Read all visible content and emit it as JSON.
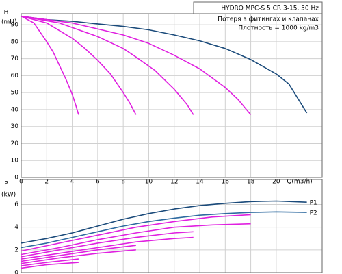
{
  "chart_data": [
    {
      "type": "line",
      "title": "HYDRO MPC-S 5 CR 3-15, 50 Hz",
      "annotations": [
        "Потеря в фитингах и клапанах",
        "Плотность = 1000 kg/m3"
      ],
      "ylabel": "H",
      "yunit": "(mH)",
      "xlabel": "Q(m3/h)",
      "xlim": [
        0,
        23.6
      ],
      "xticks": [
        0,
        2,
        4,
        6,
        8,
        10,
        12,
        14,
        16,
        18,
        20
      ],
      "ylim": [
        0,
        96.5
      ],
      "yticks": [
        0,
        10,
        20,
        30,
        40,
        50,
        60,
        70,
        80,
        90
      ],
      "grid": true,
      "series": [
        {
          "color": "#1a4a7a",
          "x": [
            0,
            2,
            4,
            6,
            8,
            10,
            12,
            14,
            16,
            18,
            20,
            21,
            22.4
          ],
          "values": [
            95,
            93,
            92,
            90.5,
            89,
            87,
            84,
            80.5,
            76,
            69.5,
            61,
            55,
            38
          ]
        },
        {
          "color": "#e020e0",
          "x": [
            0,
            4,
            8,
            10,
            12,
            14,
            16,
            17,
            18
          ],
          "values": [
            95,
            91,
            84,
            79,
            72,
            64,
            53,
            46,
            37
          ]
        },
        {
          "color": "#e020e0",
          "x": [
            0,
            3,
            6,
            8,
            9,
            10.5,
            12,
            13,
            13.5
          ],
          "values": [
            95,
            91,
            83,
            76,
            71,
            63,
            52,
            43,
            37
          ]
        },
        {
          "color": "#e020e0",
          "x": [
            0,
            2,
            4,
            5,
            6,
            7,
            8,
            8.5,
            9
          ],
          "values": [
            95,
            91,
            82,
            76,
            69,
            61,
            50,
            44,
            37
          ]
        },
        {
          "color": "#e020e0",
          "x": [
            0,
            1,
            2,
            2.5,
            3,
            3.5,
            4,
            4.3,
            4.5
          ],
          "values": [
            95,
            91,
            80,
            74,
            66,
            58,
            49,
            42,
            37
          ]
        }
      ]
    },
    {
      "type": "line",
      "ylabel": "P",
      "yunit": "(kW)",
      "xlim": [
        0,
        23.6
      ],
      "ylim": [
        0,
        8.2
      ],
      "yticks": [
        0,
        2,
        4,
        6
      ],
      "grid": true,
      "series": [
        {
          "name": "P1",
          "color": "#1a4a7a",
          "x": [
            0,
            2,
            4,
            6,
            8,
            10,
            12,
            14,
            16,
            18,
            20,
            22.4
          ],
          "values": [
            2.6,
            3.0,
            3.5,
            4.1,
            4.7,
            5.2,
            5.6,
            5.9,
            6.1,
            6.25,
            6.3,
            6.2
          ]
        },
        {
          "name": "P2",
          "color": "#2e6aa0",
          "x": [
            0,
            2,
            4,
            6,
            8,
            10,
            12,
            14,
            16,
            18,
            20,
            22.4
          ],
          "values": [
            2.2,
            2.6,
            3.1,
            3.6,
            4.1,
            4.5,
            4.8,
            5.05,
            5.2,
            5.3,
            5.35,
            5.3
          ]
        },
        {
          "color": "#e020e0",
          "x": [
            0,
            3,
            6,
            9,
            12,
            15,
            18
          ],
          "values": [
            1.9,
            2.6,
            3.3,
            4.0,
            4.5,
            4.9,
            5.1
          ]
        },
        {
          "color": "#e020e0",
          "x": [
            0,
            3,
            6,
            9,
            12,
            15,
            18
          ],
          "values": [
            1.6,
            2.2,
            2.9,
            3.5,
            4.0,
            4.2,
            4.3
          ]
        },
        {
          "color": "#e020e0",
          "x": [
            0,
            3,
            6,
            9,
            12,
            13.5
          ],
          "values": [
            1.4,
            2.0,
            2.6,
            3.1,
            3.5,
            3.6
          ]
        },
        {
          "color": "#e020e0",
          "x": [
            0,
            3,
            6,
            9,
            12,
            13.5
          ],
          "values": [
            1.2,
            1.7,
            2.2,
            2.7,
            3.0,
            3.1
          ]
        },
        {
          "color": "#e020e0",
          "x": [
            0,
            3,
            6,
            9
          ],
          "values": [
            1.0,
            1.5,
            2.0,
            2.4
          ]
        },
        {
          "color": "#e020e0",
          "x": [
            0,
            3,
            6,
            9
          ],
          "values": [
            0.8,
            1.3,
            1.7,
            2.0
          ]
        },
        {
          "color": "#e020e0",
          "x": [
            0,
            2,
            4.5
          ],
          "values": [
            0.6,
            0.9,
            1.2
          ]
        },
        {
          "color": "#e020e0",
          "x": [
            0,
            2,
            4.5
          ],
          "values": [
            0.4,
            0.7,
            0.9
          ]
        }
      ]
    }
  ]
}
